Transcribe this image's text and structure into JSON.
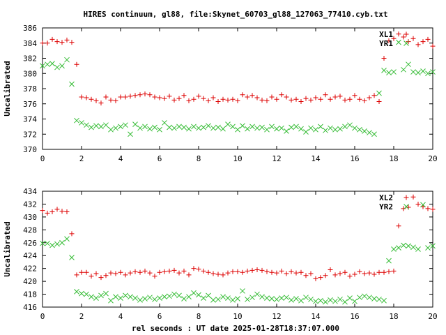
{
  "title": "HIRES continuum, gl88, file:Skynet_60703_gl88_127063_77410.cyb.txt",
  "xlabel": "rel seconds : UT date 2025-01-28T18:37:07.000",
  "colors": {
    "red": "#dd0000",
    "green": "#33bb33",
    "frame": "#000000"
  },
  "chart_data": [
    {
      "type": "scatter",
      "ylabel": "Uncalibrated",
      "xlim": [
        0,
        20
      ],
      "ylim": [
        370,
        386
      ],
      "xticks": [
        0,
        2,
        4,
        6,
        8,
        10,
        12,
        14,
        16,
        18,
        20
      ],
      "yticks": [
        370,
        372,
        374,
        376,
        378,
        380,
        382,
        384,
        386
      ],
      "legend_position": "top-right",
      "series": [
        {
          "name": "XL1",
          "marker": "+",
          "color": "#dd0000",
          "x": [
            0.0,
            0.25,
            0.5,
            0.75,
            1.0,
            1.25,
            1.5,
            1.75,
            2.0,
            2.25,
            2.5,
            2.75,
            3.0,
            3.25,
            3.5,
            3.75,
            4.0,
            4.25,
            4.5,
            4.75,
            5.0,
            5.25,
            5.5,
            5.75,
            6.0,
            6.25,
            6.5,
            6.75,
            7.0,
            7.25,
            7.5,
            7.75,
            8.0,
            8.25,
            8.5,
            8.75,
            9.0,
            9.25,
            9.5,
            9.75,
            10.0,
            10.25,
            10.5,
            10.75,
            11.0,
            11.25,
            11.5,
            11.75,
            12.0,
            12.25,
            12.5,
            12.75,
            13.0,
            13.25,
            13.5,
            13.75,
            14.0,
            14.25,
            14.5,
            14.75,
            15.0,
            15.25,
            15.5,
            15.75,
            16.0,
            16.25,
            16.5,
            16.75,
            17.0,
            17.25,
            17.5,
            17.75,
            18.0,
            18.25,
            18.5,
            18.75,
            19.0,
            19.25,
            19.5,
            19.75,
            20.0
          ],
          "y": [
            384.0,
            384.0,
            384.5,
            384.2,
            384.1,
            384.4,
            384.1,
            381.2,
            376.9,
            376.8,
            376.6,
            376.4,
            376.1,
            376.9,
            376.5,
            376.4,
            376.9,
            376.9,
            377.0,
            377.1,
            377.2,
            377.3,
            377.2,
            376.9,
            376.8,
            376.7,
            377.0,
            376.5,
            376.7,
            377.1,
            376.4,
            376.6,
            377.0,
            376.7,
            376.4,
            376.8,
            376.3,
            376.6,
            376.5,
            376.6,
            376.4,
            377.2,
            376.9,
            377.1,
            376.8,
            376.5,
            376.4,
            376.9,
            376.6,
            377.2,
            376.9,
            376.5,
            376.6,
            376.3,
            376.7,
            376.5,
            376.8,
            376.6,
            377.2,
            376.6,
            376.9,
            377.0,
            376.5,
            376.6,
            377.1,
            376.6,
            376.4,
            376.8,
            377.1,
            376.3,
            382.0,
            384.3,
            384.6,
            385.2,
            384.8,
            384.2,
            384.6,
            383.8,
            384.2,
            384.5,
            383.6
          ]
        },
        {
          "name": "YR1",
          "marker": "x",
          "color": "#33bb33",
          "x": [
            0.0,
            0.25,
            0.5,
            0.75,
            1.0,
            1.25,
            1.5,
            1.75,
            2.0,
            2.25,
            2.5,
            2.75,
            3.0,
            3.25,
            3.5,
            3.75,
            4.0,
            4.25,
            4.5,
            4.75,
            5.0,
            5.25,
            5.5,
            5.75,
            6.0,
            6.25,
            6.5,
            6.75,
            7.0,
            7.25,
            7.5,
            7.75,
            8.0,
            8.25,
            8.5,
            8.75,
            9.0,
            9.25,
            9.5,
            9.75,
            10.0,
            10.25,
            10.5,
            10.75,
            11.0,
            11.25,
            11.5,
            11.75,
            12.0,
            12.25,
            12.5,
            12.75,
            13.0,
            13.25,
            13.5,
            13.75,
            14.0,
            14.25,
            14.5,
            14.75,
            15.0,
            15.25,
            15.5,
            15.75,
            16.0,
            16.25,
            16.5,
            16.75,
            17.0,
            17.25,
            17.5,
            17.75,
            18.0,
            18.25,
            18.5,
            18.75,
            19.0,
            19.25,
            19.5,
            19.75,
            20.0
          ],
          "y": [
            381.0,
            381.2,
            381.3,
            380.8,
            381.0,
            381.8,
            378.6,
            373.8,
            373.5,
            373.2,
            372.9,
            373.1,
            373.0,
            373.2,
            372.6,
            372.8,
            373.0,
            373.2,
            372.0,
            373.3,
            372.8,
            373.0,
            372.7,
            372.9,
            372.6,
            373.5,
            372.9,
            372.8,
            373.0,
            372.9,
            372.7,
            373.0,
            372.8,
            372.9,
            373.1,
            372.8,
            372.9,
            372.7,
            373.3,
            373.0,
            372.6,
            373.1,
            372.7,
            373.0,
            372.8,
            372.9,
            372.6,
            373.0,
            372.7,
            372.8,
            372.4,
            372.9,
            373.0,
            372.7,
            372.3,
            372.8,
            372.6,
            373.0,
            372.5,
            372.8,
            372.6,
            372.7,
            373.0,
            373.2,
            372.8,
            372.6,
            372.4,
            372.2,
            372.0,
            377.4,
            380.4,
            380.1,
            380.2,
            384.1,
            380.5,
            381.2,
            380.2,
            380.1,
            380.3,
            380.0,
            380.2
          ]
        }
      ]
    },
    {
      "type": "scatter",
      "ylabel": "Uncalibrated",
      "xlim": [
        0,
        20
      ],
      "ylim": [
        416,
        434
      ],
      "xticks": [
        0,
        2,
        4,
        6,
        8,
        10,
        12,
        14,
        16,
        18,
        20
      ],
      "yticks": [
        416,
        418,
        420,
        422,
        424,
        426,
        428,
        430,
        432,
        434
      ],
      "legend_position": "top-right",
      "series": [
        {
          "name": "XL2",
          "marker": "+",
          "color": "#dd0000",
          "x": [
            0.0,
            0.25,
            0.5,
            0.75,
            1.0,
            1.25,
            1.5,
            1.75,
            2.0,
            2.25,
            2.5,
            2.75,
            3.0,
            3.25,
            3.5,
            3.75,
            4.0,
            4.25,
            4.5,
            4.75,
            5.0,
            5.25,
            5.5,
            5.75,
            6.0,
            6.25,
            6.5,
            6.75,
            7.0,
            7.25,
            7.5,
            7.75,
            8.0,
            8.25,
            8.5,
            8.75,
            9.0,
            9.25,
            9.5,
            9.75,
            10.0,
            10.25,
            10.5,
            10.75,
            11.0,
            11.25,
            11.5,
            11.75,
            12.0,
            12.25,
            12.5,
            12.75,
            13.0,
            13.25,
            13.5,
            13.75,
            14.0,
            14.25,
            14.5,
            14.75,
            15.0,
            15.25,
            15.5,
            15.75,
            16.0,
            16.25,
            16.5,
            16.75,
            17.0,
            17.25,
            17.5,
            17.75,
            18.0,
            18.25,
            18.5,
            18.75,
            19.0,
            19.25,
            19.5,
            19.75,
            20.0
          ],
          "y": [
            431.0,
            430.6,
            430.8,
            431.2,
            430.9,
            430.8,
            427.4,
            421.0,
            421.4,
            421.4,
            420.8,
            421.2,
            420.6,
            420.9,
            421.3,
            421.2,
            421.4,
            421.0,
            421.3,
            421.5,
            421.4,
            421.6,
            421.3,
            420.8,
            421.4,
            421.5,
            421.6,
            421.7,
            421.3,
            421.6,
            421.0,
            422.0,
            421.9,
            421.6,
            421.4,
            421.2,
            421.1,
            421.0,
            421.3,
            421.5,
            421.5,
            421.4,
            421.6,
            421.7,
            421.8,
            421.7,
            421.5,
            421.4,
            421.3,
            421.6,
            421.2,
            421.5,
            421.3,
            421.4,
            420.9,
            421.2,
            420.4,
            420.6,
            420.9,
            421.8,
            421.0,
            421.2,
            421.4,
            420.8,
            421.1,
            421.5,
            421.2,
            421.3,
            421.1,
            421.4,
            421.4,
            421.5,
            421.6,
            428.6,
            431.3,
            431.5,
            433.1,
            432.0,
            431.6,
            431.3,
            431.2
          ]
        },
        {
          "name": "YR2",
          "marker": "x",
          "color": "#33bb33",
          "x": [
            0.0,
            0.25,
            0.5,
            0.75,
            1.0,
            1.25,
            1.5,
            1.75,
            2.0,
            2.25,
            2.5,
            2.75,
            3.0,
            3.25,
            3.5,
            3.75,
            4.0,
            4.25,
            4.5,
            4.75,
            5.0,
            5.25,
            5.5,
            5.75,
            6.0,
            6.25,
            6.5,
            6.75,
            7.0,
            7.25,
            7.5,
            7.75,
            8.0,
            8.25,
            8.5,
            8.75,
            9.0,
            9.25,
            9.5,
            9.75,
            10.0,
            10.25,
            10.5,
            10.75,
            11.0,
            11.25,
            11.5,
            11.75,
            12.0,
            12.25,
            12.5,
            12.75,
            13.0,
            13.25,
            13.5,
            13.75,
            14.0,
            14.25,
            14.5,
            14.75,
            15.0,
            15.25,
            15.5,
            15.75,
            16.0,
            16.25,
            16.5,
            16.75,
            17.0,
            17.25,
            17.5,
            17.75,
            18.0,
            18.25,
            18.5,
            18.75,
            19.0,
            19.25,
            19.5,
            19.75,
            20.0
          ],
          "y": [
            425.9,
            425.9,
            425.6,
            425.8,
            426.0,
            426.6,
            423.7,
            418.4,
            418.1,
            418.0,
            417.6,
            417.4,
            417.8,
            418.1,
            417.0,
            417.6,
            417.4,
            417.8,
            417.6,
            417.4,
            417.1,
            417.3,
            417.5,
            417.2,
            417.4,
            417.6,
            417.7,
            418.0,
            417.8,
            417.3,
            417.6,
            418.2,
            417.9,
            417.4,
            417.8,
            417.1,
            417.2,
            417.6,
            417.4,
            417.1,
            417.3,
            418.5,
            417.2,
            417.5,
            418.0,
            417.6,
            417.4,
            417.3,
            417.2,
            417.4,
            417.5,
            417.1,
            417.3,
            417.0,
            417.5,
            417.2,
            416.9,
            417.0,
            416.8,
            417.1,
            416.9,
            417.2,
            416.8,
            417.4,
            416.9,
            417.5,
            417.7,
            417.5,
            417.3,
            417.2,
            417.0,
            423.2,
            425.0,
            425.2,
            425.6,
            425.5,
            425.3,
            425.0,
            431.9,
            425.2,
            425.5
          ]
        }
      ]
    }
  ]
}
